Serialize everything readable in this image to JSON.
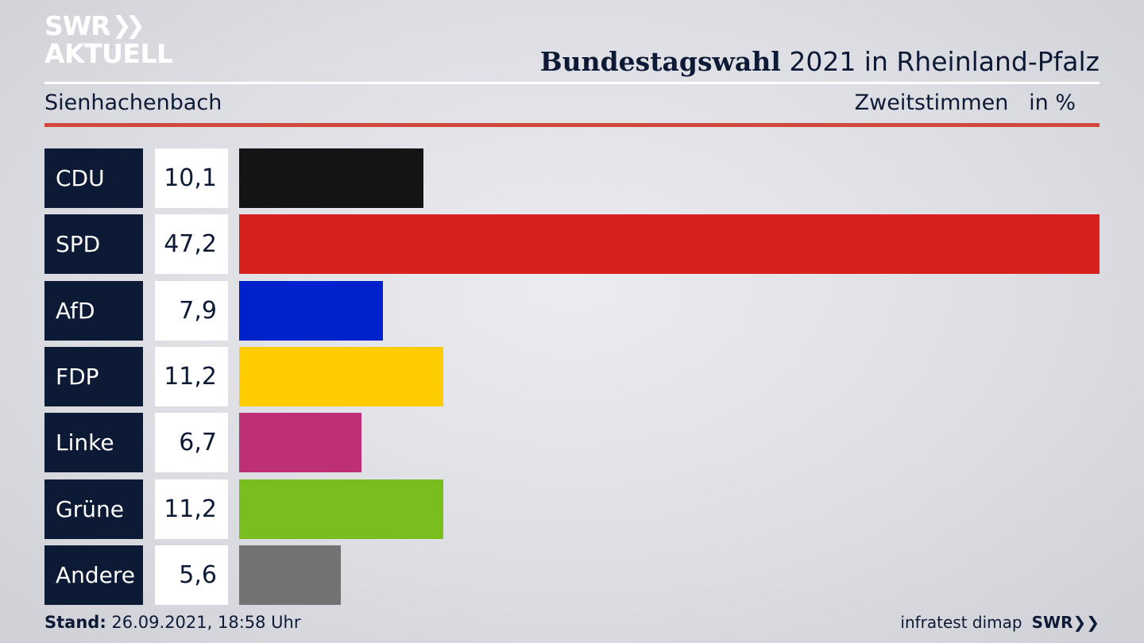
{
  "header": {
    "logo_line1": "SWR",
    "logo_line2": "AKTUELL",
    "title_bold": "Bundestagswahl",
    "title_rest": " 2021 in Rheinland-Pfalz",
    "region": "Sienhachenbach",
    "metric": "Zweitstimmen   in %"
  },
  "chart_data": {
    "type": "bar",
    "orientation": "horizontal",
    "categories": [
      "CDU",
      "SPD",
      "AfD",
      "FDP",
      "Linke",
      "Grüne",
      "Andere"
    ],
    "values": [
      10.1,
      47.2,
      7.9,
      11.2,
      6.7,
      11.2,
      5.6
    ],
    "value_labels": [
      "10,1",
      "47,2",
      "7,9",
      "11,2",
      "6,7",
      "11,2",
      "5,6"
    ],
    "colors": [
      "#141414",
      "#d8201f",
      "#0022cc",
      "#ffcc00",
      "#be3075",
      "#78be1e",
      "#737373"
    ],
    "xlim": [
      0,
      47.2
    ]
  },
  "footer": {
    "stand_label": "Stand:",
    "stand_value": " 26.09.2021, 18:58 Uhr",
    "source": "infratest dimap",
    "brand": "SWR"
  }
}
